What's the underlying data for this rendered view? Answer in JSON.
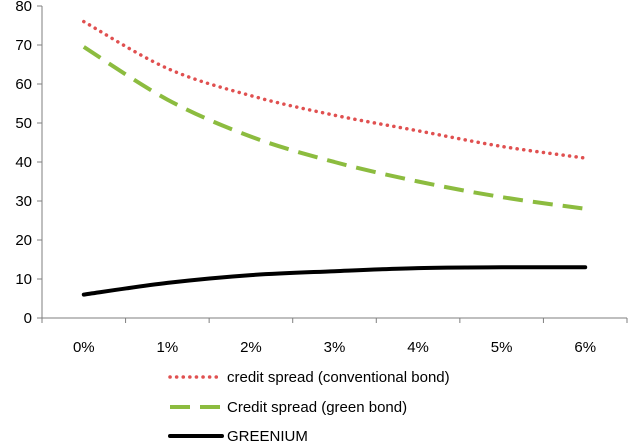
{
  "chart_data": {
    "type": "line",
    "title": "",
    "xlabel": "",
    "ylabel": "",
    "categories": [
      "0%",
      "1%",
      "2%",
      "3%",
      "4%",
      "5%",
      "6%"
    ],
    "ylim": [
      0,
      80
    ],
    "y_ticks": [
      "0",
      "10",
      "20",
      "30",
      "40",
      "50",
      "60",
      "70",
      "80"
    ],
    "grid": false,
    "legend_position": "bottom",
    "series": [
      {
        "name": "credit spread (conventional bond)",
        "values": [
          76,
          64,
          57,
          52,
          48,
          44,
          41
        ],
        "color": "#e05050",
        "line_style": "dotted"
      },
      {
        "name": "Credit spread (green bond)",
        "values": [
          69.5,
          56,
          46.5,
          40,
          35,
          31,
          28
        ],
        "color": "#8cbc3f",
        "line_style": "dashed"
      },
      {
        "name": "GREENIUM",
        "values": [
          6,
          9,
          11,
          12,
          12.8,
          13,
          13
        ],
        "color": "#000000",
        "line_style": "solid"
      }
    ]
  }
}
